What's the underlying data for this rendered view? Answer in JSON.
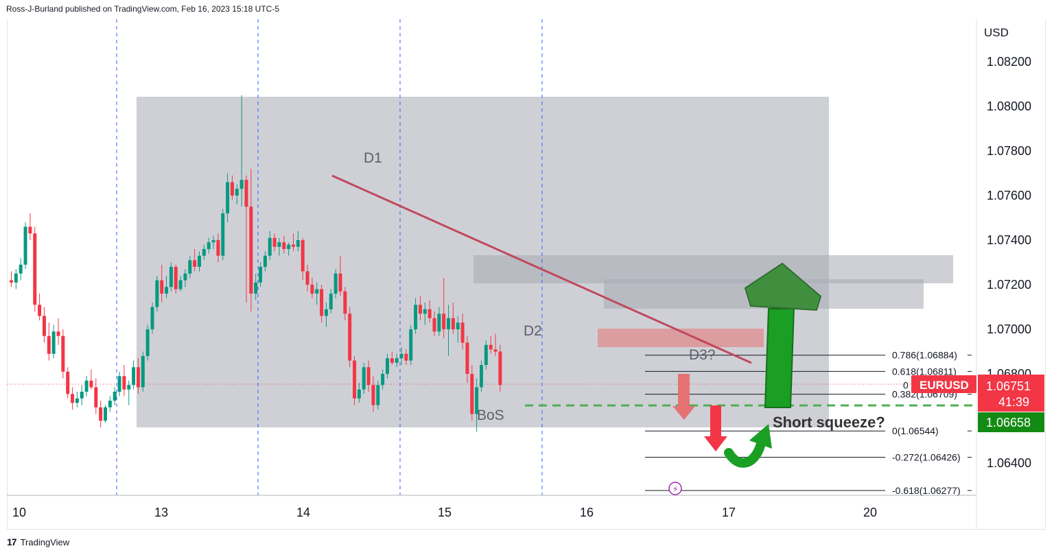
{
  "header": {
    "published_text": "Ross-J-Burland published on TradingView.com, Feb 16, 2023 15:18 UTC-5"
  },
  "footer": {
    "brand": "TradingView",
    "logo_text": "17"
  },
  "chart_data": {
    "type": "candlestick",
    "symbol": "EURUSD",
    "currency": "USD",
    "x_tick_labels": [
      "10",
      "13",
      "14",
      "15",
      "16",
      "17",
      "20"
    ],
    "y_tick_labels": [
      "1.08200",
      "1.08000",
      "1.07800",
      "1.07600",
      "1.07400",
      "1.07200",
      "1.07000",
      "1.06800",
      "1.06400"
    ],
    "ylim": [
      1.063,
      1.0835
    ],
    "price_tag": {
      "label": "EURUSD",
      "price": "1.06751",
      "countdown": "41:39"
    },
    "level_tag": "1.06658",
    "annotations": {
      "d1": "D1",
      "d2": "D2",
      "d3": "D3?",
      "bos": "BoS",
      "squeeze": "Short squeeze?"
    },
    "fib_levels": [
      {
        "label": "0.786(1.06884)",
        "value": 1.06884
      },
      {
        "label": "0.618(1.06811)",
        "value": 1.06811
      },
      {
        "label": "0",
        "value": 1.0675
      },
      {
        "label": "0.382(1.06709)",
        "value": 1.06709
      },
      {
        "label": "0(1.06544)",
        "value": 1.06544
      },
      {
        "label": "-0.272(1.06426)",
        "value": 1.06426
      },
      {
        "label": "-0.618(1.06277)",
        "value": 1.06277
      }
    ],
    "candles": [
      [
        1.0722,
        1.0726,
        1.0719,
        1.0721
      ],
      [
        1.0721,
        1.0727,
        1.0718,
        1.0725
      ],
      [
        1.0725,
        1.0732,
        1.0722,
        1.0729
      ],
      [
        1.0729,
        1.0748,
        1.0727,
        1.0746
      ],
      [
        1.0746,
        1.0752,
        1.074,
        1.0743
      ],
      [
        1.0743,
        1.0746,
        1.0708,
        1.0711
      ],
      [
        1.0711,
        1.0716,
        1.0704,
        1.0706
      ],
      [
        1.0706,
        1.071,
        1.0694,
        1.0697
      ],
      [
        1.0697,
        1.0703,
        1.0686,
        1.0689
      ],
      [
        1.0689,
        1.0702,
        1.0687,
        1.0699
      ],
      [
        1.0699,
        1.0705,
        1.0693,
        1.0697
      ],
      [
        1.0697,
        1.07,
        1.0678,
        1.0681
      ],
      [
        1.0681,
        1.0683,
        1.0669,
        1.0671
      ],
      [
        1.0671,
        1.0674,
        1.0664,
        1.0667
      ],
      [
        1.0667,
        1.0672,
        1.0665,
        1.0669
      ],
      [
        1.0669,
        1.0675,
        1.0666,
        1.0672
      ],
      [
        1.0672,
        1.0679,
        1.067,
        1.0677
      ],
      [
        1.0677,
        1.0682,
        1.0673,
        1.0674
      ],
      [
        1.0674,
        1.0678,
        1.0662,
        1.0665
      ],
      [
        1.0665,
        1.0668,
        1.0656,
        1.0659
      ],
      [
        1.0659,
        1.0666,
        1.0658,
        1.0665
      ],
      [
        1.0665,
        1.067,
        1.0663,
        1.0668
      ],
      [
        1.0668,
        1.0674,
        1.0666,
        1.0672
      ],
      [
        1.0672,
        1.0681,
        1.067,
        1.0679
      ],
      [
        1.0679,
        1.0684,
        1.067,
        1.0673
      ],
      [
        1.0673,
        1.0677,
        1.0666,
        1.0675
      ],
      [
        1.0675,
        1.0686,
        1.0673,
        1.0683
      ],
      [
        1.0683,
        1.0687,
        1.0671,
        1.0674
      ],
      [
        1.0674,
        1.069,
        1.0672,
        1.0688
      ],
      [
        1.0688,
        1.0702,
        1.0686,
        1.07
      ],
      [
        1.07,
        1.0712,
        1.0698,
        1.071
      ],
      [
        1.071,
        1.0724,
        1.0708,
        1.0722
      ],
      [
        1.0722,
        1.0729,
        1.0712,
        1.0716
      ],
      [
        1.0716,
        1.0724,
        1.0714,
        1.0719
      ],
      [
        1.0719,
        1.073,
        1.0717,
        1.0728
      ],
      [
        1.0728,
        1.0729,
        1.0716,
        1.0718
      ],
      [
        1.0718,
        1.0724,
        1.0717,
        1.0722
      ],
      [
        1.0722,
        1.0727,
        1.0719,
        1.0725
      ],
      [
        1.0725,
        1.0733,
        1.0723,
        1.0731
      ],
      [
        1.0731,
        1.0736,
        1.0726,
        1.0728
      ],
      [
        1.0728,
        1.0735,
        1.0726,
        1.0733
      ],
      [
        1.0733,
        1.0738,
        1.0731,
        1.0736
      ],
      [
        1.0736,
        1.0741,
        1.0734,
        1.0739
      ],
      [
        1.0739,
        1.0742,
        1.0736,
        1.074
      ],
      [
        1.074,
        1.0743,
        1.073,
        1.0733
      ],
      [
        1.0733,
        1.0754,
        1.0731,
        1.0752
      ],
      [
        1.0752,
        1.077,
        1.0748,
        1.0766
      ],
      [
        1.0766,
        1.0769,
        1.0758,
        1.076
      ],
      [
        1.076,
        1.0765,
        1.0756,
        1.0763
      ],
      [
        1.0763,
        1.0805,
        1.0755,
        1.0767
      ],
      [
        1.0767,
        1.0769,
        1.0712,
        1.0755
      ],
      [
        1.0755,
        1.0772,
        1.0708,
        1.0716
      ],
      [
        1.0716,
        1.0725,
        1.0713,
        1.0721
      ],
      [
        1.0721,
        1.073,
        1.0719,
        1.0728
      ],
      [
        1.0728,
        1.0735,
        1.0726,
        1.0733
      ],
      [
        1.0733,
        1.0744,
        1.0731,
        1.0741
      ],
      [
        1.0741,
        1.0743,
        1.0735,
        1.0737
      ],
      [
        1.0737,
        1.0741,
        1.0733,
        1.0739
      ],
      [
        1.0739,
        1.0742,
        1.0734,
        1.0736
      ],
      [
        1.0736,
        1.0739,
        1.0733,
        1.0738
      ],
      [
        1.0738,
        1.0743,
        1.0735,
        1.0737
      ],
      [
        1.0737,
        1.0744,
        1.0735,
        1.074
      ],
      [
        1.074,
        1.0741,
        1.0722,
        1.0726
      ],
      [
        1.0726,
        1.0729,
        1.0717,
        1.072
      ],
      [
        1.072,
        1.0723,
        1.0714,
        1.0716
      ],
      [
        1.0716,
        1.0721,
        1.0711,
        1.0718
      ],
      [
        1.0718,
        1.072,
        1.0703,
        1.0706
      ],
      [
        1.0706,
        1.0712,
        1.0701,
        1.0709
      ],
      [
        1.0709,
        1.0718,
        1.0707,
        1.0716
      ],
      [
        1.0716,
        1.0727,
        1.0714,
        1.0725
      ],
      [
        1.0725,
        1.0733,
        1.0715,
        1.0717
      ],
      [
        1.0717,
        1.0719,
        1.0704,
        1.0707
      ],
      [
        1.0707,
        1.071,
        1.0683,
        1.0686
      ],
      [
        1.0686,
        1.0688,
        1.0666,
        1.0669
      ],
      [
        1.0669,
        1.0676,
        1.0667,
        1.0673
      ],
      [
        1.0673,
        1.0685,
        1.0671,
        1.0683
      ],
      [
        1.0683,
        1.0686,
        1.0672,
        1.0675
      ],
      [
        1.0675,
        1.0679,
        1.0663,
        1.0666
      ],
      [
        1.0666,
        1.0677,
        1.0664,
        1.0675
      ],
      [
        1.0675,
        1.0682,
        1.0673,
        1.068
      ],
      [
        1.068,
        1.0689,
        1.0678,
        1.0687
      ],
      [
        1.0687,
        1.069,
        1.0684,
        1.0685
      ],
      [
        1.0685,
        1.0689,
        1.0683,
        1.0687
      ],
      [
        1.0687,
        1.0692,
        1.0684,
        1.0689
      ],
      [
        1.0689,
        1.0691,
        1.0684,
        1.0686
      ],
      [
        1.0686,
        1.0702,
        1.0684,
        1.07
      ],
      [
        1.07,
        1.0714,
        1.0698,
        1.0711
      ],
      [
        1.0711,
        1.0715,
        1.0704,
        1.0707
      ],
      [
        1.0707,
        1.0712,
        1.0702,
        1.0709
      ],
      [
        1.0709,
        1.0713,
        1.0703,
        1.0705
      ],
      [
        1.0705,
        1.0708,
        1.0697,
        1.0699
      ],
      [
        1.0699,
        1.071,
        1.0697,
        1.0707
      ],
      [
        1.0707,
        1.0723,
        1.0696,
        1.07
      ],
      [
        1.07,
        1.0711,
        1.0688,
        1.0705
      ],
      [
        1.0705,
        1.0712,
        1.0698,
        1.07
      ],
      [
        1.07,
        1.0706,
        1.0694,
        1.0703
      ],
      [
        1.0703,
        1.0707,
        1.0691,
        1.0694
      ],
      [
        1.0694,
        1.0697,
        1.0676,
        1.068
      ],
      [
        1.068,
        1.0684,
        1.0659,
        1.0662
      ],
      [
        1.0662,
        1.0678,
        1.0654,
        1.0674
      ],
      [
        1.0674,
        1.0686,
        1.0672,
        1.0684
      ],
      [
        1.0684,
        1.0695,
        1.0682,
        1.0693
      ],
      [
        1.0693,
        1.0697,
        1.0689,
        1.0691
      ],
      [
        1.0691,
        1.0698,
        1.0688,
        1.069
      ],
      [
        1.069,
        1.0693,
        1.0672,
        1.0675
      ]
    ]
  }
}
